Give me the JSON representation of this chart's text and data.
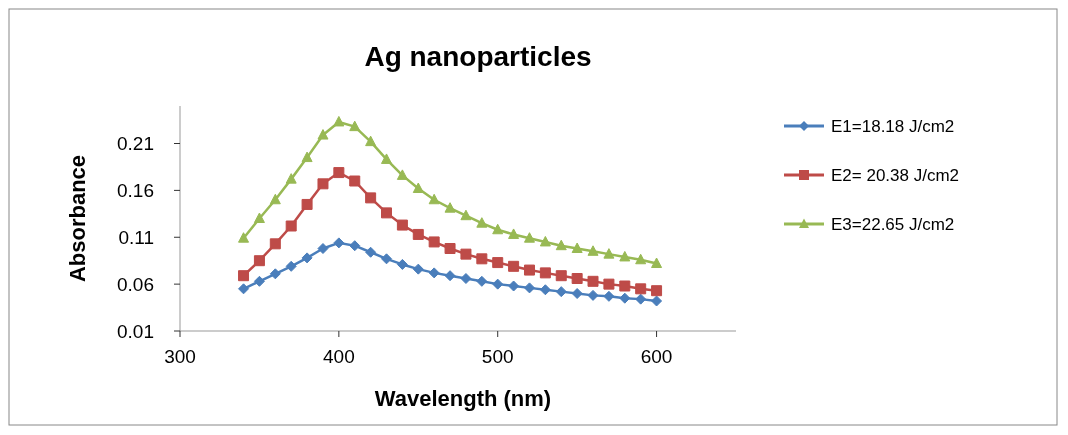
{
  "chart_data": {
    "type": "line",
    "title": "Ag nanoparticles",
    "xlabel": "Wavelength (nm)",
    "ylabel": "Absorbance",
    "xlim": [
      300,
      650
    ],
    "xticks": [
      300,
      400,
      500,
      600
    ],
    "ylim": [
      0.01,
      0.25
    ],
    "yticks": [
      0.01,
      0.06,
      0.11,
      0.16,
      0.21
    ],
    "grid": false,
    "legend": "right",
    "x": [
      340,
      350,
      360,
      370,
      380,
      390,
      400,
      410,
      420,
      430,
      440,
      450,
      460,
      470,
      480,
      490,
      500,
      510,
      520,
      530,
      540,
      550,
      560,
      570,
      580,
      590,
      600
    ],
    "series": [
      {
        "name": "E1=18.18 J/cm2",
        "color": "#4a7ebb",
        "marker": "diamond",
        "values": [
          0.055,
          0.063,
          0.071,
          0.079,
          0.088,
          0.098,
          0.104,
          0.101,
          0.094,
          0.087,
          0.081,
          0.076,
          0.072,
          0.069,
          0.066,
          0.063,
          0.06,
          0.058,
          0.056,
          0.054,
          0.052,
          0.05,
          0.048,
          0.047,
          0.045,
          0.044,
          0.042
        ]
      },
      {
        "name": "E2= 20.38 J/cm2",
        "color": "#be4b48",
        "marker": "square",
        "values": [
          0.069,
          0.085,
          0.103,
          0.122,
          0.145,
          0.167,
          0.179,
          0.17,
          0.152,
          0.136,
          0.123,
          0.113,
          0.105,
          0.098,
          0.092,
          0.087,
          0.083,
          0.079,
          0.075,
          0.072,
          0.069,
          0.066,
          0.063,
          0.06,
          0.058,
          0.055,
          0.053
        ]
      },
      {
        "name": "E3=22.65 J/cm2",
        "color": "#98b954",
        "marker": "triangle",
        "values": [
          0.109,
          0.13,
          0.15,
          0.172,
          0.195,
          0.219,
          0.233,
          0.228,
          0.212,
          0.193,
          0.176,
          0.162,
          0.15,
          0.141,
          0.133,
          0.125,
          0.118,
          0.113,
          0.109,
          0.105,
          0.101,
          0.098,
          0.095,
          0.092,
          0.089,
          0.086,
          0.082
        ]
      }
    ]
  }
}
